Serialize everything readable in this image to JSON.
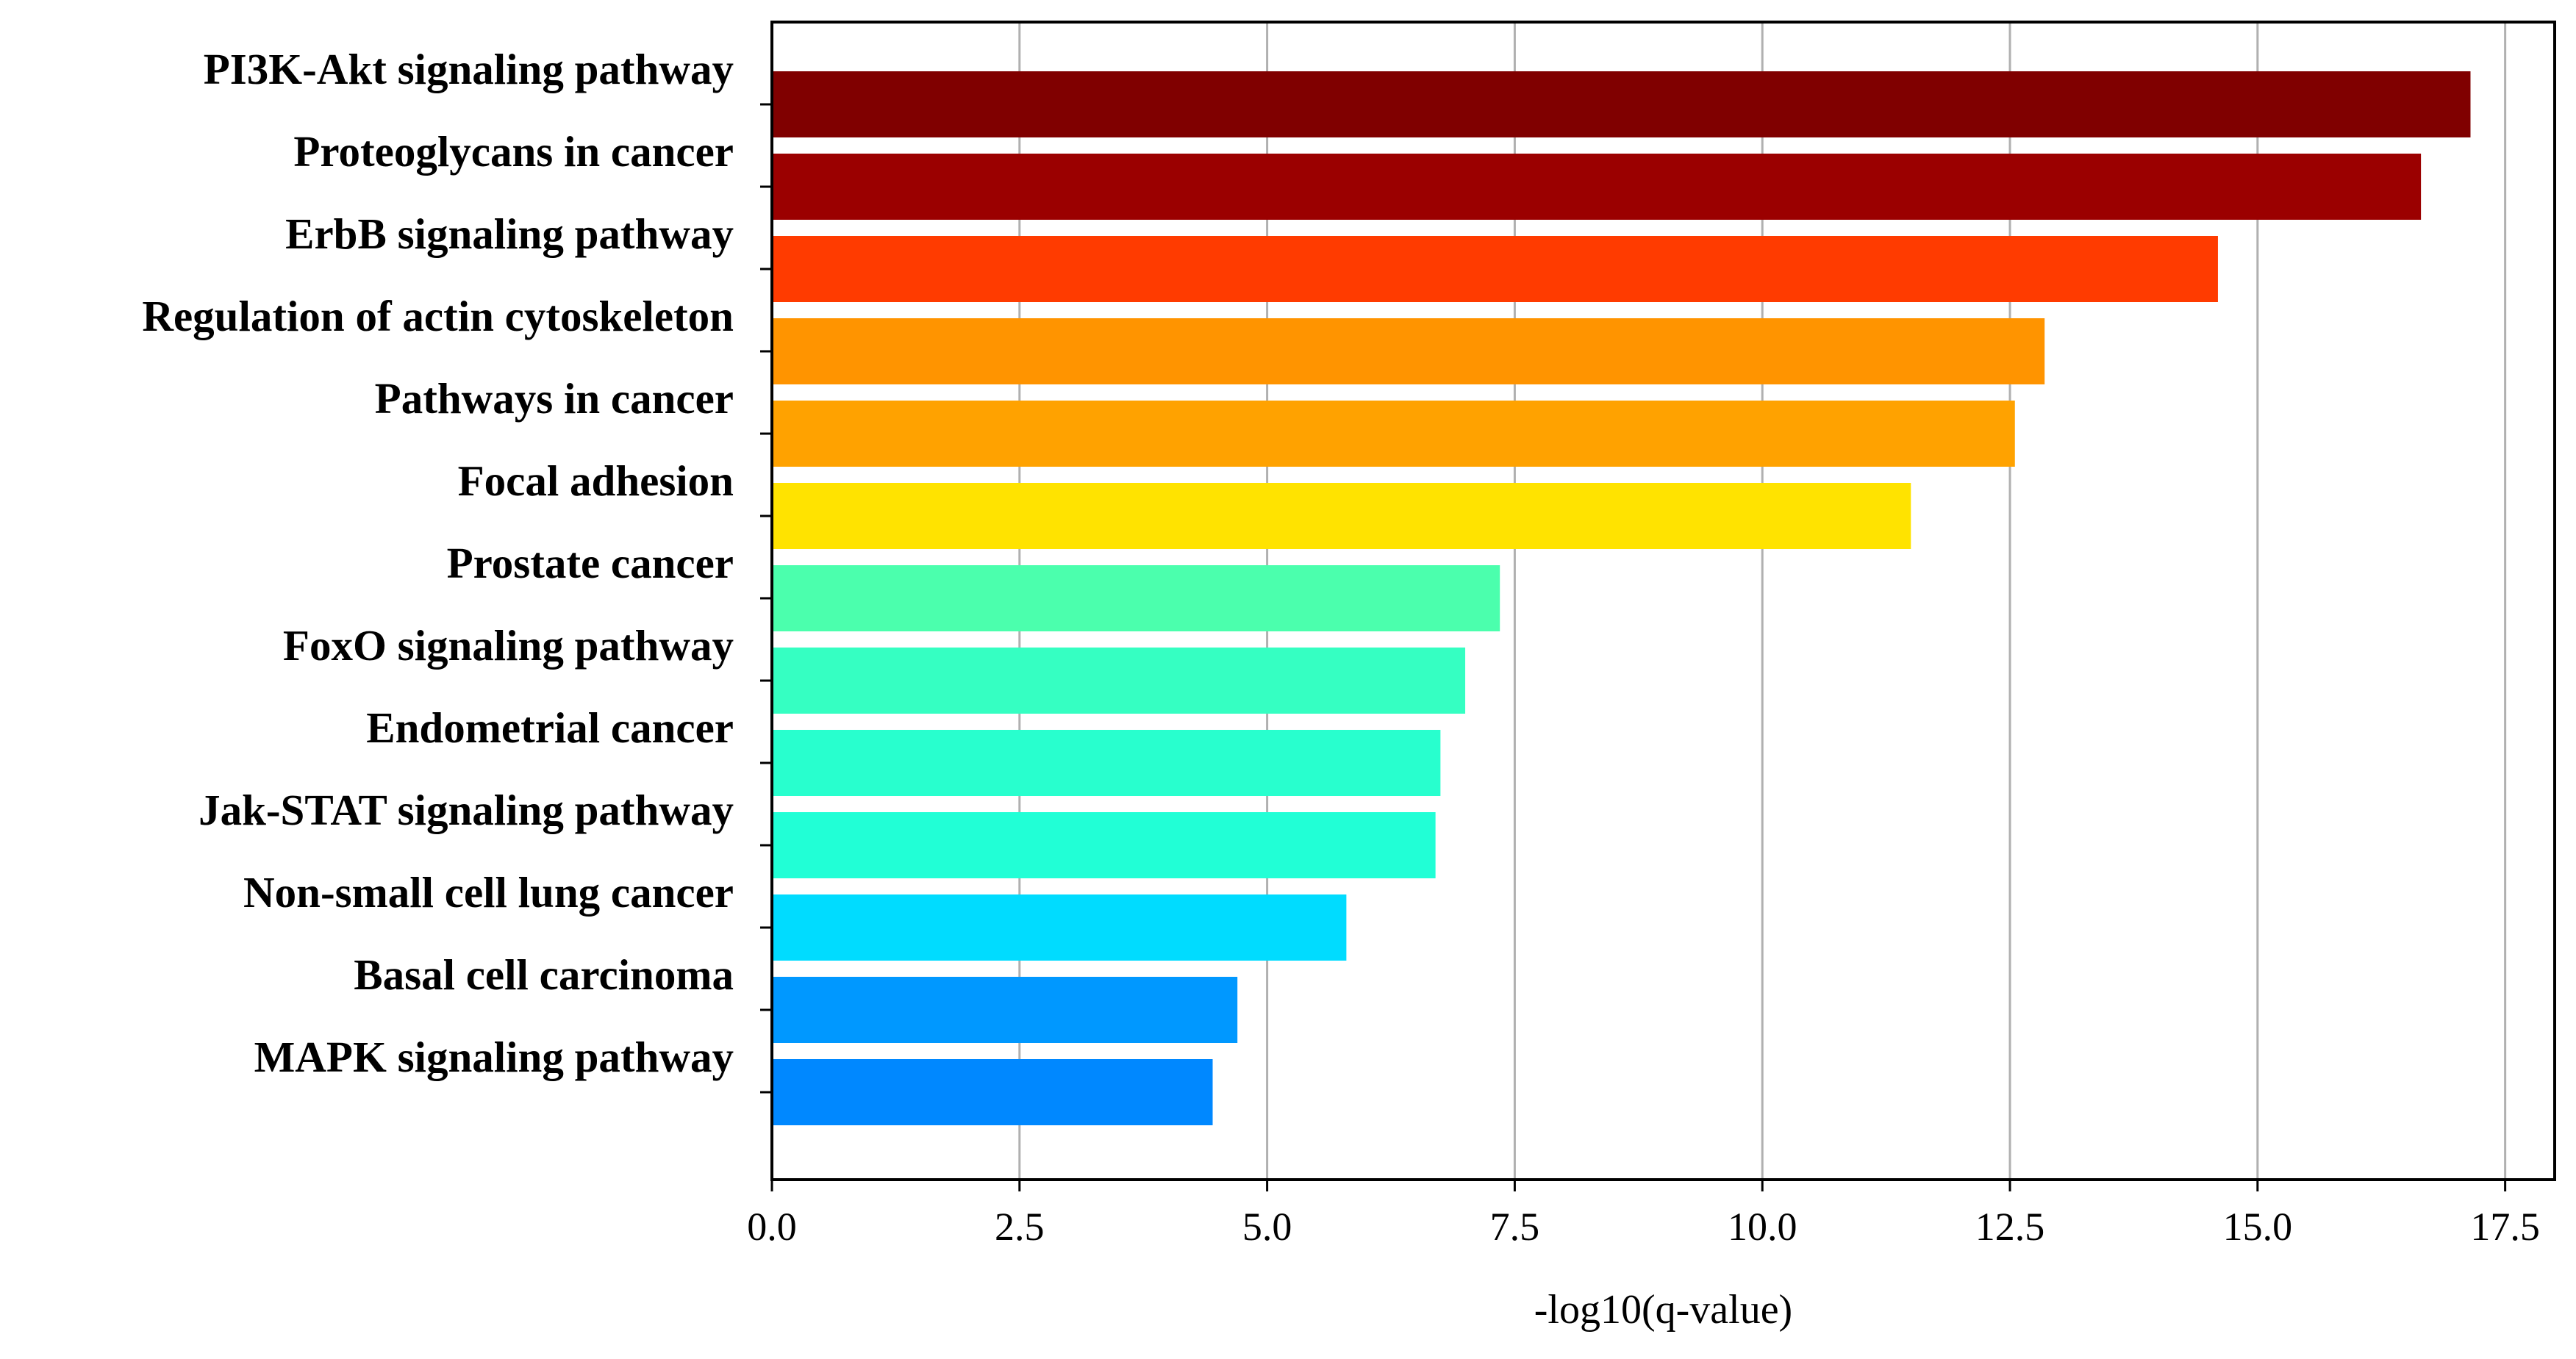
{
  "chart_data": {
    "type": "bar",
    "orientation": "horizontal",
    "title": "",
    "xlabel": "-log10(q-value)",
    "ylabel": "",
    "xlim": [
      0,
      18.0
    ],
    "grid": "vertical",
    "legend": "none",
    "x_ticks": [
      "0.0",
      "2.5",
      "5.0",
      "7.5",
      "10.0",
      "12.5",
      "15.0",
      "17.5"
    ],
    "categories": [
      "PI3K-Akt signaling pathway",
      "Proteoglycans in cancer",
      "ErbB signaling pathway",
      "Regulation of actin cytoskeleton",
      "Pathways in cancer",
      "Focal adhesion",
      "Prostate cancer",
      "FoxO signaling pathway",
      "Endometrial cancer",
      "Jak-STAT signaling pathway",
      "Non-small cell lung cancer",
      "Basal cell carcinoma",
      "MAPK signaling pathway"
    ],
    "values": [
      17.15,
      16.65,
      14.6,
      12.85,
      12.55,
      11.5,
      7.35,
      7.0,
      6.75,
      6.7,
      5.8,
      4.7,
      4.45
    ],
    "colors": [
      "#800000",
      "#9b0000",
      "#ff3b00",
      "#ff9400",
      "#ffa200",
      "#ffe300",
      "#4bffad",
      "#35ffc2",
      "#28ffce",
      "#21ffd6",
      "#00dcff",
      "#0098ff",
      "#0088ff"
    ]
  }
}
